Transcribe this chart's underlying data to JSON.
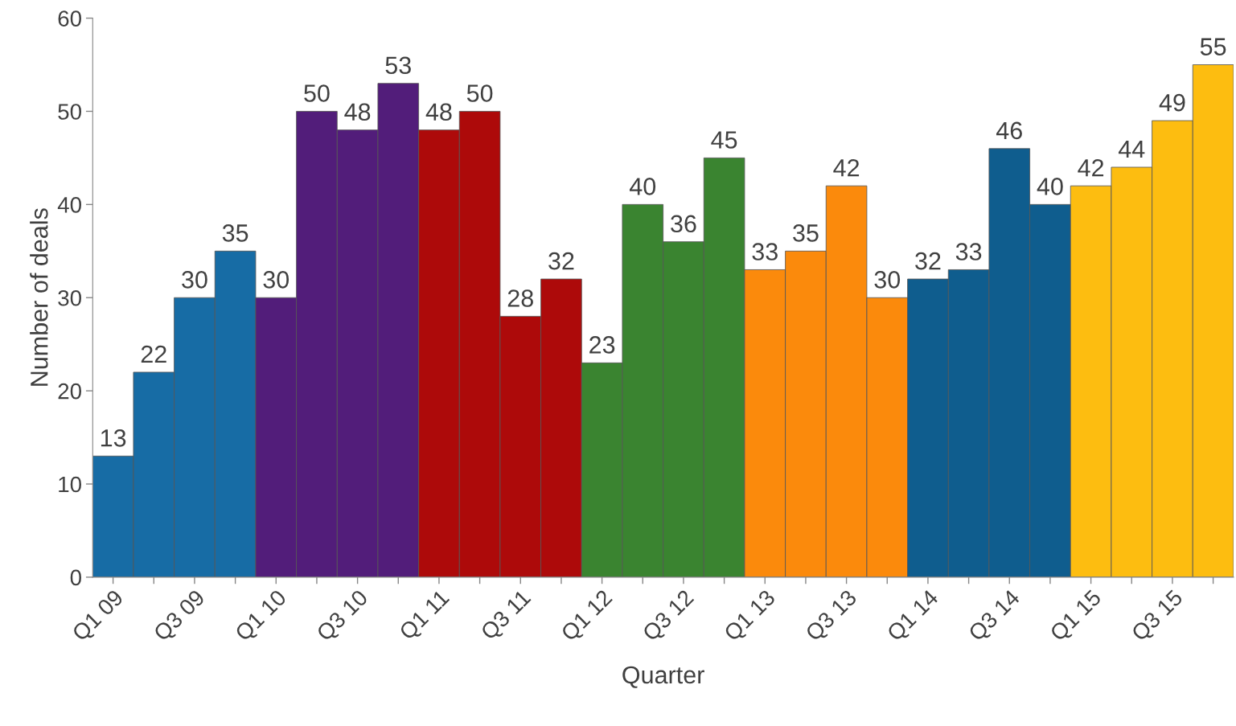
{
  "chart_data": {
    "type": "bar",
    "xlabel": "Quarter",
    "ylabel": "Number of deals",
    "categories": [
      "Q1 09",
      null,
      "Q3 09",
      null,
      "Q1 10",
      null,
      "Q3 10",
      null,
      "Q1 11",
      null,
      "Q3 11",
      null,
      "Q1 12",
      null,
      "Q3 12",
      null,
      "Q1 13",
      null,
      "Q3 13",
      null,
      "Q1 14",
      null,
      "Q3 14",
      null,
      "Q1 15",
      null,
      "Q3 15",
      null
    ],
    "values": [
      13,
      22,
      30,
      35,
      30,
      50,
      48,
      53,
      48,
      50,
      28,
      32,
      23,
      40,
      36,
      45,
      33,
      35,
      42,
      30,
      32,
      33,
      46,
      40,
      42,
      44,
      49,
      55
    ],
    "colors": [
      "#176ca5",
      "#176ca5",
      "#176ca5",
      "#176ca5",
      "#521d7a",
      "#521d7a",
      "#521d7a",
      "#521d7a",
      "#ad0a0a",
      "#ad0a0a",
      "#ad0a0a",
      "#ad0a0a",
      "#3a8430",
      "#3a8430",
      "#3a8430",
      "#3a8430",
      "#fb8a0c",
      "#fb8a0c",
      "#fb8a0c",
      "#fb8a0c",
      "#0f5d8e",
      "#0f5d8e",
      "#0f5d8e",
      "#0f5d8e",
      "#fdbd10",
      "#fdbd10",
      "#fdbd10",
      "#fdbd10"
    ],
    "ylim": [
      0,
      60
    ],
    "yticks": [
      0,
      10,
      20,
      30,
      40,
      50,
      60
    ],
    "grid": false,
    "data_labels": true
  }
}
